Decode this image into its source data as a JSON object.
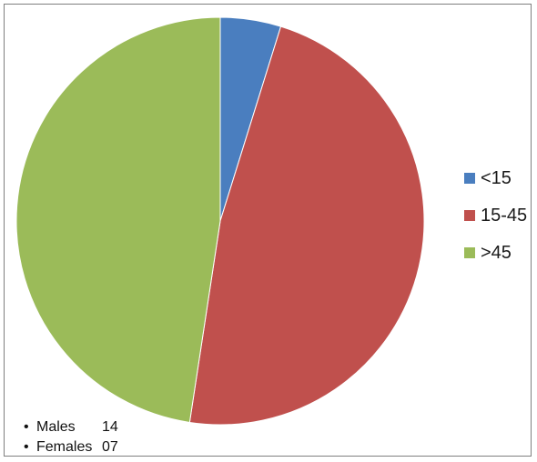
{
  "chart_data": {
    "type": "pie",
    "title": "",
    "slices": [
      {
        "label": "<15",
        "value": 4.8,
        "color": "#4a7ebf"
      },
      {
        "label": "15-45",
        "value": 47.6,
        "color": "#c0504d"
      },
      {
        "label": ">45",
        "value": 47.6,
        "color": "#9bbb59"
      }
    ],
    "start_angle_deg": 0,
    "direction": "clockwise",
    "legend_position": "right",
    "annotations": [
      {
        "bullet": "•",
        "label": "Males",
        "value": "14"
      },
      {
        "bullet": "•",
        "label": "Females",
        "value": "07"
      }
    ]
  }
}
